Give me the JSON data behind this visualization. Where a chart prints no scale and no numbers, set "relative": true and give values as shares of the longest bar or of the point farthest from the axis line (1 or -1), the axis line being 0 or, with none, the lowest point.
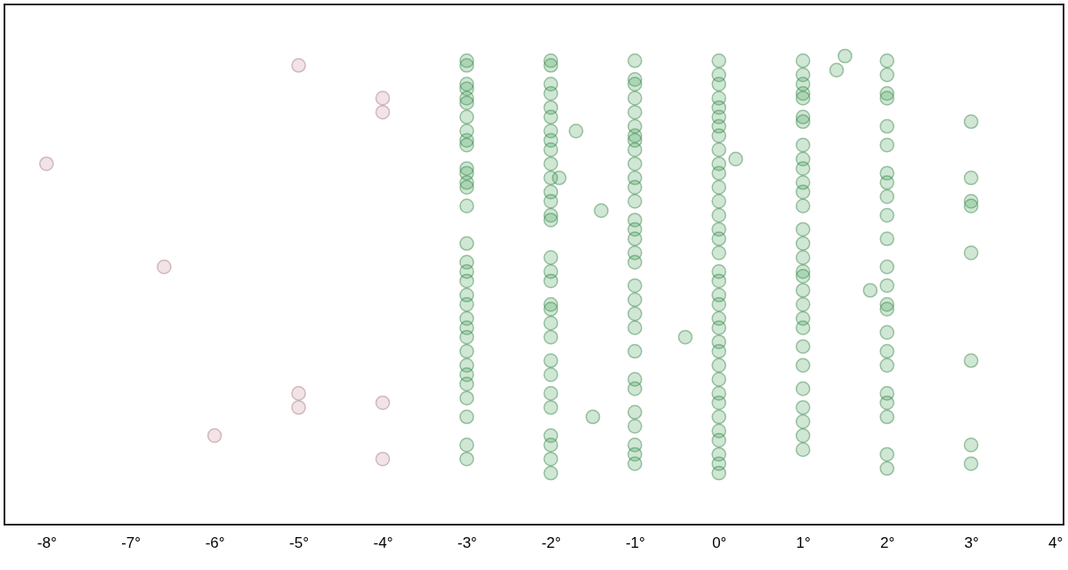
{
  "chart_data": {
    "type": "scatter",
    "relative": true,
    "marker": "circle",
    "xlim": [
      -8.5,
      4.1
    ],
    "xticks": [
      {
        "value": -8,
        "label": "-8°"
      },
      {
        "value": -7,
        "label": "-7°"
      },
      {
        "value": -6,
        "label": "-6°"
      },
      {
        "value": -5,
        "label": "-5°"
      },
      {
        "value": -4,
        "label": "-4°"
      },
      {
        "value": -3,
        "label": "-3°"
      },
      {
        "value": -2,
        "label": "-2°"
      },
      {
        "value": -1,
        "label": "-1°"
      },
      {
        "value": 0,
        "label": "0°"
      },
      {
        "value": 1,
        "label": "1°"
      },
      {
        "value": 2,
        "label": "2°"
      },
      {
        "value": 3,
        "label": "3°"
      },
      {
        "value": 4,
        "label": "4°"
      }
    ],
    "series": [
      {
        "color": "#c9909c",
        "x": [
          -8,
          -6.6,
          -6,
          -5,
          -5,
          -5,
          -4,
          -4,
          -4,
          -4
        ],
        "values": [
          0.77,
          0.55,
          0.19,
          0.98,
          0.28,
          0.25,
          0.91,
          0.88,
          0.26,
          0.14
        ]
      },
      {
        "color": "#3f9f52",
        "x": [
          -3,
          -3,
          -3,
          -3,
          -3,
          -3,
          -3,
          -3,
          -3,
          -3,
          -3,
          -3,
          -3,
          -3,
          -3,
          -3,
          -3,
          -3,
          -3,
          -3,
          -3,
          -3,
          -3,
          -3,
          -3,
          -3,
          -3,
          -3,
          -3,
          -3,
          -3,
          -3,
          -2,
          -2,
          -2,
          -2,
          -2,
          -2,
          -2,
          -2,
          -2,
          -2,
          -2,
          -2,
          -2,
          -2,
          -2,
          -2,
          -2,
          -2,
          -2,
          -2,
          -2,
          -2,
          -2,
          -2,
          -2,
          -2,
          -2,
          -2,
          -2,
          -2,
          -1,
          -1,
          -1,
          -1,
          -1,
          -1,
          -1,
          -1,
          -1,
          -1,
          -1,
          -1,
          -1,
          -1,
          -1,
          -1,
          -1,
          -1,
          -1,
          -1,
          -1,
          -1,
          -1,
          -1,
          -1,
          -1,
          -1,
          -1,
          -1,
          -1,
          0,
          0,
          0,
          0,
          0,
          0,
          0,
          0,
          0,
          0,
          0,
          0,
          0,
          0,
          0,
          0,
          0,
          0,
          0,
          0,
          0,
          0,
          0,
          0,
          0,
          0,
          0,
          0,
          0,
          0,
          0,
          0,
          0,
          0,
          0,
          1,
          1,
          1,
          1,
          1,
          1,
          1,
          1,
          1,
          1,
          1,
          1,
          1,
          1,
          1,
          1,
          1,
          1,
          1,
          1,
          1,
          1,
          1,
          1,
          1,
          1,
          1,
          1,
          1,
          2,
          2,
          2,
          2,
          2,
          2,
          2,
          2,
          2,
          2,
          2,
          2,
          2,
          2,
          2,
          2,
          2,
          2,
          2,
          2,
          2,
          2,
          2,
          3,
          3,
          3,
          3,
          3,
          3,
          3,
          3,
          -1.9,
          -1.7,
          -1.4,
          -1.5,
          0.2,
          -0.4,
          1.4,
          1.5,
          1.8
        ],
        "values": [
          0.99,
          0.98,
          0.94,
          0.93,
          0.91,
          0.9,
          0.87,
          0.84,
          0.82,
          0.81,
          0.76,
          0.75,
          0.73,
          0.72,
          0.68,
          0.6,
          0.56,
          0.54,
          0.52,
          0.49,
          0.47,
          0.44,
          0.42,
          0.4,
          0.37,
          0.34,
          0.32,
          0.3,
          0.27,
          0.23,
          0.17,
          0.14,
          0.99,
          0.98,
          0.94,
          0.92,
          0.89,
          0.87,
          0.84,
          0.82,
          0.8,
          0.77,
          0.74,
          0.71,
          0.69,
          0.66,
          0.65,
          0.57,
          0.54,
          0.52,
          0.47,
          0.46,
          0.43,
          0.4,
          0.35,
          0.32,
          0.28,
          0.25,
          0.19,
          0.17,
          0.14,
          0.11,
          0.99,
          0.95,
          0.94,
          0.91,
          0.88,
          0.85,
          0.83,
          0.82,
          0.8,
          0.77,
          0.74,
          0.72,
          0.69,
          0.65,
          0.63,
          0.61,
          0.58,
          0.56,
          0.51,
          0.48,
          0.45,
          0.42,
          0.37,
          0.31,
          0.29,
          0.24,
          0.21,
          0.17,
          0.15,
          0.13,
          0.99,
          0.96,
          0.94,
          0.91,
          0.89,
          0.87,
          0.85,
          0.83,
          0.8,
          0.77,
          0.75,
          0.72,
          0.69,
          0.66,
          0.63,
          0.61,
          0.58,
          0.54,
          0.52,
          0.49,
          0.47,
          0.44,
          0.42,
          0.39,
          0.37,
          0.34,
          0.31,
          0.28,
          0.26,
          0.23,
          0.2,
          0.18,
          0.15,
          0.13,
          0.11,
          0.99,
          0.96,
          0.94,
          0.92,
          0.91,
          0.87,
          0.86,
          0.81,
          0.78,
          0.76,
          0.73,
          0.71,
          0.68,
          0.63,
          0.6,
          0.57,
          0.54,
          0.53,
          0.5,
          0.47,
          0.44,
          0.42,
          0.38,
          0.34,
          0.29,
          0.25,
          0.22,
          0.19,
          0.16,
          0.99,
          0.96,
          0.92,
          0.91,
          0.85,
          0.81,
          0.75,
          0.73,
          0.7,
          0.66,
          0.61,
          0.55,
          0.51,
          0.47,
          0.46,
          0.41,
          0.37,
          0.34,
          0.28,
          0.26,
          0.23,
          0.15,
          0.12,
          0.86,
          0.74,
          0.69,
          0.68,
          0.58,
          0.35,
          0.17,
          0.13,
          0.74,
          0.84,
          0.67,
          0.23,
          0.78,
          0.4,
          0.97,
          1.0,
          0.5
        ]
      }
    ]
  }
}
